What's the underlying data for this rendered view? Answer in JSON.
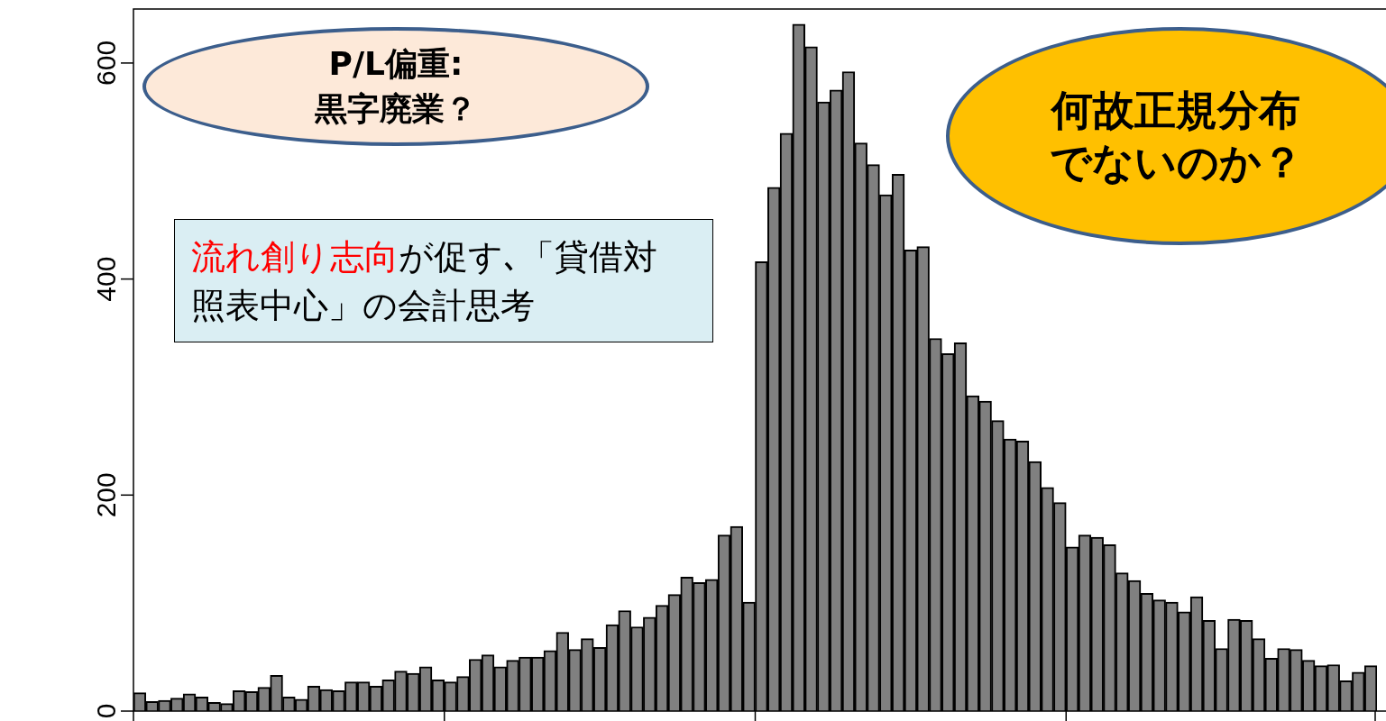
{
  "chart_data": {
    "type": "bar",
    "categories": [
      null,
      null,
      null,
      null,
      null,
      null,
      null,
      null,
      null,
      null,
      null,
      null,
      null,
      null,
      null,
      null,
      null,
      null,
      null,
      null,
      null,
      null,
      null,
      null,
      null,
      null,
      null,
      null,
      null,
      null,
      null,
      null,
      null,
      null,
      null,
      null,
      null,
      null,
      null,
      null,
      null,
      null,
      null,
      null,
      null,
      null,
      null,
      null,
      null,
      null,
      null,
      null,
      null,
      null,
      null,
      null,
      null,
      null,
      null,
      null,
      null,
      null,
      null,
      null,
      null,
      null,
      null,
      null,
      null,
      null,
      null,
      null,
      null,
      null,
      null,
      null,
      null,
      null,
      null,
      null,
      null,
      null,
      null,
      null,
      null,
      null,
      null,
      null,
      null,
      null,
      null,
      null,
      null,
      null,
      null,
      null,
      null,
      null,
      null,
      null
    ],
    "values": [
      17,
      9,
      10,
      12,
      16,
      13,
      8,
      7,
      19,
      18,
      22,
      33,
      13,
      11,
      23,
      20,
      19,
      27,
      27,
      23,
      29,
      37,
      35,
      41,
      29,
      27,
      32,
      48,
      52,
      41,
      47,
      50,
      50,
      56,
      73,
      57,
      67,
      59,
      80,
      93,
      78,
      87,
      98,
      108,
      124,
      119,
      122,
      163,
      171,
      101,
      416,
      485,
      535,
      636,
      615,
      564,
      575,
      592,
      526,
      506,
      478,
      497,
      427,
      430,
      345,
      331,
      341,
      292,
      287,
      269,
      252,
      250,
      231,
      207,
      193,
      152,
      163,
      161,
      154,
      128,
      121,
      109,
      103,
      101,
      92,
      106,
      84,
      58,
      85,
      84,
      67,
      49,
      58,
      57,
      47,
      42,
      43,
      28,
      36,
      42
    ],
    "color": "#808080",
    "ylim": [
      0,
      650
    ],
    "yticks": [
      0,
      200,
      400,
      600
    ],
    "grid": false,
    "legend": false,
    "tick_labels": "y",
    "annotations": [
      "P/L偏重:\n黒字廃業？",
      "流れ創り志向",
      "が促す､「貸借対照表中心」の会計思考",
      "何故正規分布でないのか？"
    ]
  }
}
